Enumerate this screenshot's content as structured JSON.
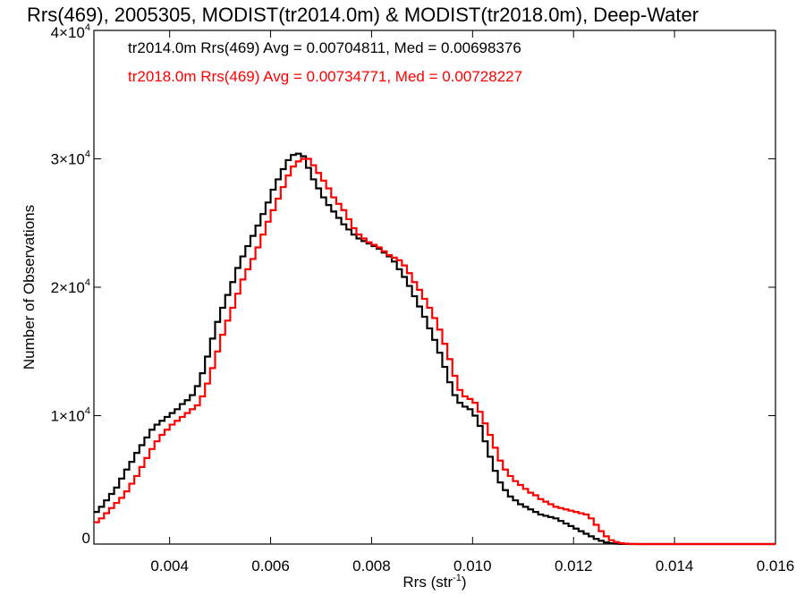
{
  "chart_data": {
    "type": "line",
    "title": "Rrs(469), 2005305, MODIST(tr2014.0m) & MODIST(tr2018.0m), Deep-Water",
    "xlabel": "Rrs (str",
    "xlabel_sup": "-1",
    "xlabel_end": ")",
    "ylabel": "Number of Observations",
    "xlim": [
      0.0025,
      0.016
    ],
    "ylim": [
      0,
      40000
    ],
    "x_ticks": [
      {
        "value": 0.004,
        "label": "0.004"
      },
      {
        "value": 0.006,
        "label": "0.006"
      },
      {
        "value": 0.008,
        "label": "0.008"
      },
      {
        "value": 0.01,
        "label": "0.010"
      },
      {
        "value": 0.012,
        "label": "0.012"
      },
      {
        "value": 0.014,
        "label": "0.014"
      },
      {
        "value": 0.016,
        "label": "0.016"
      }
    ],
    "y_ticks": [
      {
        "value": 0,
        "label": "0",
        "sup": ""
      },
      {
        "value": 10000,
        "label": "1×10",
        "sup": "4"
      },
      {
        "value": 20000,
        "label": "2×10",
        "sup": "4"
      },
      {
        "value": 30000,
        "label": "3×10",
        "sup": "4"
      },
      {
        "value": 40000,
        "label": "4×10",
        "sup": "4"
      }
    ],
    "annotations": [
      {
        "text": "tr2014.0m Rrs(469) Avg = 0.00704811, Med = 0.00698376",
        "color": "#000000"
      },
      {
        "text": "tr2018.0m Rrs(469) Avg = 0.00734771, Med = 0.00728227",
        "color": "#ff0000"
      }
    ],
    "step": 0.0001,
    "series": [
      {
        "color": "#000000",
        "x": [
          0.0025,
          0.0026,
          0.0027,
          0.0028,
          0.0029,
          0.003,
          0.0031,
          0.0032,
          0.0033,
          0.0034,
          0.0035,
          0.0036,
          0.0037,
          0.0038,
          0.0039,
          0.004,
          0.0041,
          0.0042,
          0.0043,
          0.0044,
          0.0045,
          0.0046,
          0.0047,
          0.0048,
          0.0049,
          0.005,
          0.0051,
          0.0052,
          0.0053,
          0.0054,
          0.0055,
          0.0056,
          0.0057,
          0.0058,
          0.0059,
          0.006,
          0.0061,
          0.0062,
          0.0063,
          0.0064,
          0.0065,
          0.0066,
          0.0067,
          0.0068,
          0.0069,
          0.007,
          0.0071,
          0.0072,
          0.0073,
          0.0074,
          0.0075,
          0.0076,
          0.0077,
          0.0078,
          0.0079,
          0.008,
          0.0081,
          0.0082,
          0.0083,
          0.0084,
          0.0085,
          0.0086,
          0.0087,
          0.0088,
          0.0089,
          0.009,
          0.0091,
          0.0092,
          0.0093,
          0.0094,
          0.0095,
          0.0096,
          0.0097,
          0.0098,
          0.0099,
          0.01,
          0.0101,
          0.0102,
          0.0103,
          0.0104,
          0.0105,
          0.0106,
          0.0107,
          0.0108,
          0.0109,
          0.011,
          0.0111,
          0.0112,
          0.0113,
          0.0114,
          0.0115,
          0.0116,
          0.0117,
          0.0118,
          0.0119,
          0.012,
          0.0121,
          0.0122,
          0.0123,
          0.0124,
          0.0125,
          0.0126,
          0.0127,
          0.0128,
          0.0129,
          0.013,
          0.0131,
          0.0132,
          0.0133,
          0.0134,
          0.0135,
          0.014,
          0.015,
          0.016
        ],
        "y": [
          2500,
          2900,
          3400,
          3900,
          4400,
          5100,
          5800,
          6400,
          7100,
          7700,
          8300,
          8900,
          9300,
          9600,
          9900,
          10200,
          10500,
          10900,
          11200,
          11600,
          12300,
          13300,
          14600,
          16000,
          17300,
          18400,
          19400,
          20400,
          21500,
          22400,
          23200,
          24000,
          24800,
          25700,
          26600,
          27600,
          28400,
          29200,
          29900,
          30300,
          30400,
          30200,
          29300,
          28400,
          27700,
          27000,
          26400,
          25900,
          25400,
          24900,
          24500,
          24100,
          23800,
          23600,
          23400,
          23200,
          23000,
          22700,
          22400,
          22000,
          21400,
          20800,
          20100,
          19300,
          18500,
          17700,
          16800,
          15900,
          14900,
          13800,
          12600,
          11600,
          11000,
          10700,
          10500,
          10000,
          9200,
          8000,
          6800,
          5700,
          4800,
          4200,
          3700,
          3400,
          3100,
          2900,
          2700,
          2500,
          2300,
          2200,
          2100,
          2000,
          1800,
          1600,
          1400,
          1200,
          1000,
          800,
          600,
          400,
          250,
          120,
          60,
          30,
          10,
          5,
          2,
          1,
          0,
          0,
          0,
          0,
          0,
          0
        ]
      },
      {
        "color": "#ff0000",
        "x": [
          0.0025,
          0.0026,
          0.0027,
          0.0028,
          0.0029,
          0.003,
          0.0031,
          0.0032,
          0.0033,
          0.0034,
          0.0035,
          0.0036,
          0.0037,
          0.0038,
          0.0039,
          0.004,
          0.0041,
          0.0042,
          0.0043,
          0.0044,
          0.0045,
          0.0046,
          0.0047,
          0.0048,
          0.0049,
          0.005,
          0.0051,
          0.0052,
          0.0053,
          0.0054,
          0.0055,
          0.0056,
          0.0057,
          0.0058,
          0.0059,
          0.006,
          0.0061,
          0.0062,
          0.0063,
          0.0064,
          0.0065,
          0.0066,
          0.0067,
          0.0068,
          0.0069,
          0.007,
          0.0071,
          0.0072,
          0.0073,
          0.0074,
          0.0075,
          0.0076,
          0.0077,
          0.0078,
          0.0079,
          0.008,
          0.0081,
          0.0082,
          0.0083,
          0.0084,
          0.0085,
          0.0086,
          0.0087,
          0.0088,
          0.0089,
          0.009,
          0.0091,
          0.0092,
          0.0093,
          0.0094,
          0.0095,
          0.0096,
          0.0097,
          0.0098,
          0.0099,
          0.01,
          0.0101,
          0.0102,
          0.0103,
          0.0104,
          0.0105,
          0.0106,
          0.0107,
          0.0108,
          0.0109,
          0.011,
          0.0111,
          0.0112,
          0.0113,
          0.0114,
          0.0115,
          0.0116,
          0.0117,
          0.0118,
          0.0119,
          0.012,
          0.0121,
          0.0122,
          0.0123,
          0.0124,
          0.0125,
          0.0126,
          0.0127,
          0.0128,
          0.0129,
          0.013,
          0.0131,
          0.0132,
          0.0133,
          0.0134,
          0.0135,
          0.014,
          0.015,
          0.016
        ],
        "y": [
          1700,
          2000,
          2400,
          2800,
          3200,
          3600,
          4100,
          4700,
          5300,
          6000,
          6700,
          7400,
          8000,
          8500,
          8900,
          9300,
          9600,
          9900,
          10200,
          10500,
          10800,
          11500,
          12500,
          13700,
          15000,
          16300,
          17400,
          18400,
          19500,
          20600,
          21400,
          22200,
          23100,
          24100,
          25100,
          26000,
          26900,
          27800,
          28700,
          29400,
          29800,
          30000,
          30000,
          29500,
          28900,
          28300,
          27700,
          27000,
          26500,
          26000,
          25300,
          24600,
          24100,
          23800,
          23500,
          23300,
          23100,
          22800,
          22500,
          22300,
          22100,
          21700,
          21100,
          20400,
          19800,
          19100,
          18400,
          17600,
          16700,
          15600,
          14400,
          13100,
          12000,
          11500,
          11300,
          11000,
          10300,
          9400,
          8500,
          7500,
          6500,
          5800,
          5300,
          4900,
          4600,
          4300,
          4000,
          3800,
          3500,
          3300,
          3100,
          2900,
          2800,
          2700,
          2600,
          2500,
          2400,
          2300,
          2000,
          1500,
          1000,
          600,
          300,
          150,
          60,
          30,
          10,
          5,
          2,
          1,
          0,
          0,
          0,
          0
        ]
      }
    ]
  }
}
